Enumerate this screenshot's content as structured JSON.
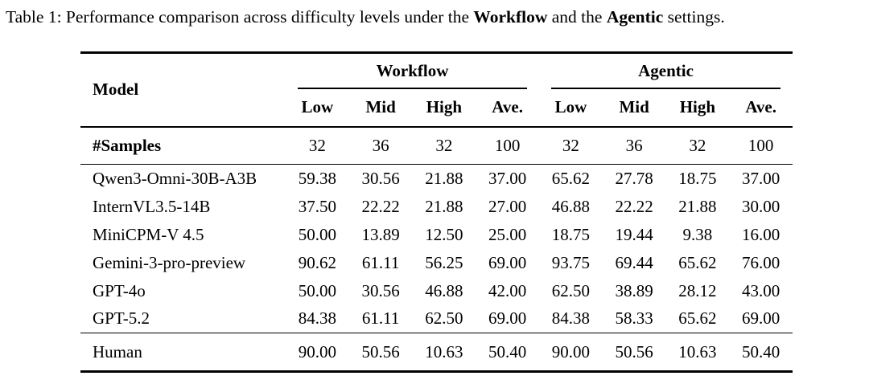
{
  "caption": {
    "prefix": "Table 1: Performance comparison across difficulty levels under the ",
    "workflow_bold": "Workflow",
    "middle": " and the ",
    "agentic_bold": "Agentic",
    "suffix": " settings."
  },
  "table": {
    "model_header": "Model",
    "groups": [
      {
        "label": "Workflow"
      },
      {
        "label": "Agentic"
      }
    ],
    "col_headers": [
      "Low",
      "Mid",
      "High",
      "Ave.",
      "Low",
      "Mid",
      "High",
      "Ave."
    ],
    "samples_row": {
      "label": "#Samples",
      "values": [
        "32",
        "36",
        "32",
        "100",
        "32",
        "36",
        "32",
        "100"
      ]
    },
    "rows": [
      {
        "model": "Qwen3-Omni-30B-A3B",
        "values": [
          "59.38",
          "30.56",
          "21.88",
          "37.00",
          "65.62",
          "27.78",
          "18.75",
          "37.00"
        ]
      },
      {
        "model": "InternVL3.5-14B",
        "values": [
          "37.50",
          "22.22",
          "21.88",
          "27.00",
          "46.88",
          "22.22",
          "21.88",
          "30.00"
        ]
      },
      {
        "model": "MiniCPM-V 4.5",
        "values": [
          "50.00",
          "13.89",
          "12.50",
          "25.00",
          "18.75",
          "19.44",
          "9.38",
          "16.00"
        ]
      },
      {
        "model": "Gemini-3-pro-preview",
        "values": [
          "90.62",
          "61.11",
          "56.25",
          "69.00",
          "93.75",
          "69.44",
          "65.62",
          "76.00"
        ]
      },
      {
        "model": "GPT-4o",
        "values": [
          "50.00",
          "30.56",
          "46.88",
          "42.00",
          "62.50",
          "38.89",
          "28.12",
          "43.00"
        ]
      },
      {
        "model": "GPT-5.2",
        "values": [
          "84.38",
          "61.11",
          "62.50",
          "69.00",
          "84.38",
          "58.33",
          "65.62",
          "69.00"
        ]
      }
    ],
    "human_row": {
      "model": "Human",
      "values": [
        "90.00",
        "50.56",
        "10.63",
        "50.40",
        "90.00",
        "50.56",
        "10.63",
        "50.40"
      ]
    }
  },
  "colors": {
    "text": "#000000",
    "background": "#ffffff",
    "rule": "#000000"
  }
}
